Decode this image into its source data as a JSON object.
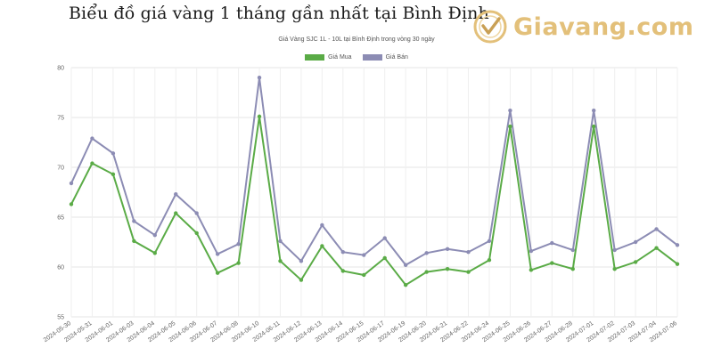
{
  "header": {
    "page_title": "Biểu đồ giá vàng 1 tháng gần nhất tại Bình Định",
    "brand_text": "Giavang.com",
    "brand_icon": "gold-coin-checkmark-icon"
  },
  "chart_data": {
    "type": "line",
    "title": "Giá Vàng SJC 1L - 10L tại Bình Định trong vòng 30 ngày",
    "xlabel": "",
    "ylabel": "",
    "ylim": [
      55,
      80
    ],
    "yticks": [
      55,
      60,
      65,
      70,
      75,
      80
    ],
    "grid": true,
    "legend_position": "top",
    "categories": [
      "2024-05-30",
      "2024-05-31",
      "2024-06-01",
      "2024-06-03",
      "2024-06-04",
      "2024-06-05",
      "2024-06-06",
      "2024-06-07",
      "2024-06-08",
      "2024-06-10",
      "2024-06-11",
      "2024-06-12",
      "2024-06-13",
      "2024-06-14",
      "2024-06-15",
      "2024-06-17",
      "2024-06-19",
      "2024-06-20",
      "2024-06-21",
      "2024-06-22",
      "2024-06-24",
      "2024-06-25",
      "2024-06-26",
      "2024-06-27",
      "2024-06-28",
      "2024-07-01",
      "2024-07-02",
      "2024-07-03",
      "2024-07-04",
      "2024-07-06"
    ],
    "series": [
      {
        "name": "Giá Mua",
        "color": "#5aab46",
        "values": [
          66.3,
          70.4,
          69.3,
          62.6,
          61.4,
          65.4,
          63.4,
          59.4,
          60.4,
          75.1,
          60.6,
          58.7,
          62.1,
          59.6,
          59.2,
          60.9,
          58.2,
          59.5,
          59.8,
          59.5,
          60.7,
          74.1,
          59.7,
          60.4,
          59.8,
          74.1,
          59.8,
          60.5,
          61.9,
          60.3
        ]
      },
      {
        "name": "Giá Bán",
        "color": "#8c8cb4",
        "values": [
          68.4,
          72.9,
          71.4,
          64.6,
          63.2,
          67.3,
          65.4,
          61.3,
          62.3,
          79.0,
          62.6,
          60.6,
          64.2,
          61.5,
          61.2,
          62.9,
          60.2,
          61.4,
          61.8,
          61.5,
          62.6,
          75.7,
          61.6,
          62.4,
          61.7,
          75.7,
          61.7,
          62.5,
          63.8,
          62.2
        ]
      }
    ]
  }
}
